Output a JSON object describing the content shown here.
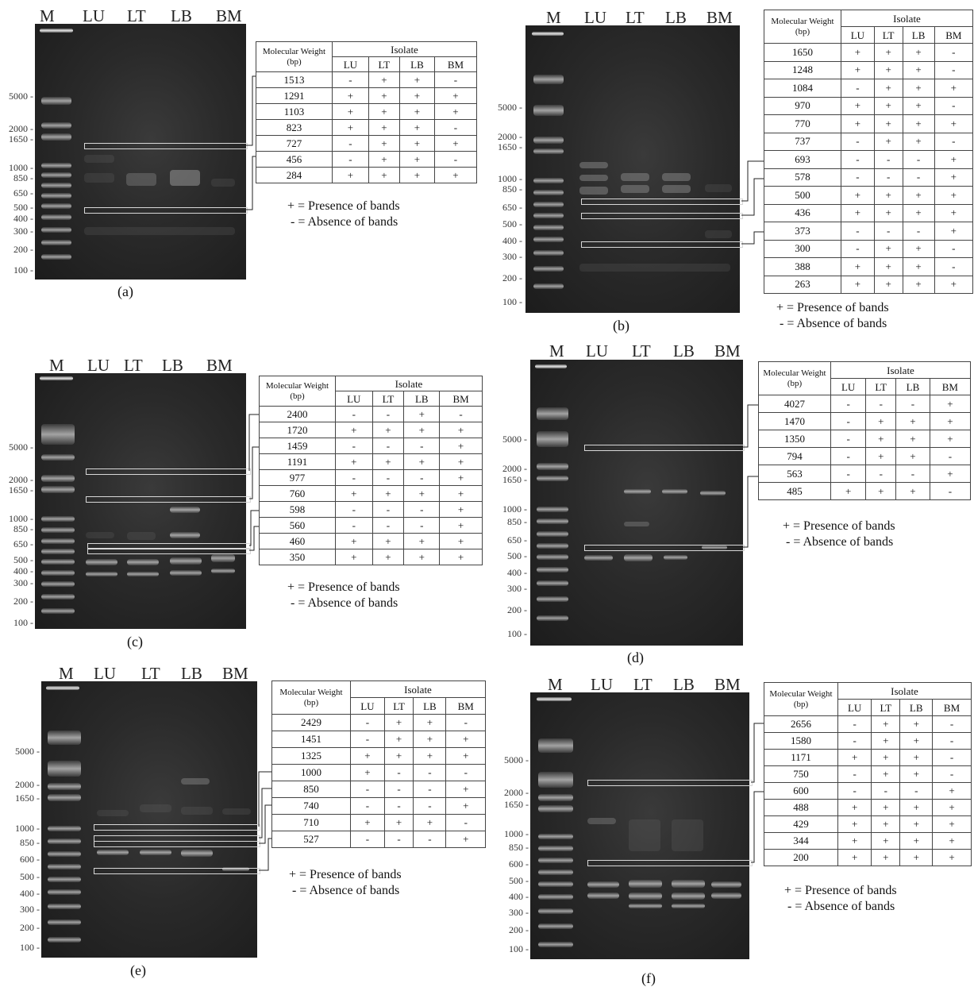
{
  "legend": {
    "presence": "+ = Presence of bands",
    "absence": "- = Absence of bands"
  },
  "ladder_labels": [
    "5000 -",
    "2000 -",
    "1650 -",
    "1000 -",
    "850 -",
    "650 -",
    "500 -",
    "400 -",
    "300 -",
    "200 -",
    "100 -"
  ],
  "ladder_labels_e": [
    "5000 -",
    "2000 -",
    "1650 -",
    "1000 -",
    "850 -",
    "600 -",
    "500 -",
    "400 -",
    "300 -",
    "200 -",
    "100 -"
  ],
  "ladder_labels_f": [
    "5000 -",
    "2000 -",
    "1650 -",
    "1000 -",
    "850 -",
    "600 -",
    "500 -",
    "400 -",
    "300 -",
    "200 -",
    "100 -"
  ],
  "table_header": {
    "mw": "Molecular Weight",
    "bp": "(bp)",
    "isolate": "Isolate",
    "cols": [
      "LU",
      "LT",
      "LB",
      "BM"
    ]
  },
  "panels": [
    {
      "caption": "(a)",
      "lanes": [
        "M",
        "LU",
        "LT",
        "LB",
        "BM"
      ],
      "rows": [
        [
          "1513",
          "-",
          "+",
          "+",
          "-"
        ],
        [
          "1291",
          "+",
          "+",
          "+",
          "+"
        ],
        [
          "1103",
          "+",
          "+",
          "+",
          "+"
        ],
        [
          "823",
          "+",
          "+",
          "+",
          "-"
        ],
        [
          "727",
          "-",
          "+",
          "+",
          "+"
        ],
        [
          "456",
          "-",
          "+",
          "+",
          "-"
        ],
        [
          "284",
          "+",
          "+",
          "+",
          "+"
        ]
      ]
    },
    {
      "caption": "(b)",
      "lanes": [
        "M",
        "LU",
        "LT",
        "LB",
        "BM"
      ],
      "rows": [
        [
          "1650",
          "+",
          "+",
          "+",
          "-"
        ],
        [
          "1248",
          "+",
          "+",
          "+",
          "-"
        ],
        [
          "1084",
          "-",
          "+",
          "+",
          "+"
        ],
        [
          "970",
          "+",
          "+",
          "+",
          "-"
        ],
        [
          "770",
          "+",
          "+",
          "+",
          "+"
        ],
        [
          "737",
          "-",
          "+",
          "+",
          "-"
        ],
        [
          "693",
          "-",
          "-",
          "-",
          "+"
        ],
        [
          "578",
          "-",
          "-",
          "-",
          "+"
        ],
        [
          "500",
          "+",
          "+",
          "+",
          "+"
        ],
        [
          "436",
          "+",
          "+",
          "+",
          "+"
        ],
        [
          "373",
          "-",
          "-",
          "-",
          "+"
        ],
        [
          "300",
          "-",
          "+",
          "+",
          "-"
        ],
        [
          "388",
          "+",
          "+",
          "+",
          "-"
        ],
        [
          "263",
          "+",
          "+",
          "+",
          "+"
        ]
      ]
    },
    {
      "caption": "(c)",
      "lanes": [
        "M",
        "LU",
        "LT",
        "LB",
        "BM"
      ],
      "rows": [
        [
          "2400",
          "-",
          "-",
          "+",
          "-"
        ],
        [
          "1720",
          "+",
          "+",
          "+",
          "+"
        ],
        [
          "1459",
          "-",
          "-",
          "-",
          "+"
        ],
        [
          "1191",
          "+",
          "+",
          "+",
          "+"
        ],
        [
          "977",
          "-",
          "-",
          "-",
          "+"
        ],
        [
          "760",
          "+",
          "+",
          "+",
          "+"
        ],
        [
          "598",
          "-",
          "-",
          "-",
          "+"
        ],
        [
          "560",
          "-",
          "-",
          "-",
          "+"
        ],
        [
          "460",
          "+",
          "+",
          "+",
          "+"
        ],
        [
          "350",
          "+",
          "+",
          "+",
          "+"
        ]
      ]
    },
    {
      "caption": "(d)",
      "lanes": [
        "M",
        "LU",
        "LT",
        "LB",
        "BM"
      ],
      "rows": [
        [
          "4027",
          "-",
          "-",
          "-",
          "+"
        ],
        [
          "1470",
          "-",
          "+",
          "+",
          "+"
        ],
        [
          "1350",
          "-",
          "+",
          "+",
          "+"
        ],
        [
          "794",
          "-",
          "+",
          "+",
          "-"
        ],
        [
          "563",
          "-",
          "-",
          "-",
          "+"
        ],
        [
          "485",
          "+",
          "+",
          "+",
          "-"
        ]
      ]
    },
    {
      "caption": "(e)",
      "lanes": [
        "M",
        "LU",
        "LT",
        "LB",
        "BM"
      ],
      "rows": [
        [
          "2429",
          "-",
          "+",
          "+",
          "-"
        ],
        [
          "1451",
          "-",
          "+",
          "+",
          "+"
        ],
        [
          "1325",
          "+",
          "+",
          "+",
          "+"
        ],
        [
          "1000",
          "+",
          "-",
          "-",
          "-"
        ],
        [
          "850",
          "-",
          "-",
          "-",
          "+"
        ],
        [
          "740",
          "-",
          "-",
          "-",
          "+"
        ],
        [
          "710",
          "+",
          "+",
          "+",
          "-"
        ],
        [
          "527",
          "-",
          "-",
          "-",
          "+"
        ]
      ]
    },
    {
      "caption": "(f)",
      "lanes": [
        "M",
        "LU",
        "LT",
        "LB",
        "BM"
      ],
      "rows": [
        [
          "2656",
          "-",
          "+",
          "+",
          "-"
        ],
        [
          "1580",
          "-",
          "+",
          "+",
          "-"
        ],
        [
          "1171",
          "+",
          "+",
          "+",
          "-"
        ],
        [
          "750",
          "-",
          "+",
          "+",
          "-"
        ],
        [
          "600",
          "-",
          "-",
          "-",
          "+"
        ],
        [
          "488",
          "+",
          "+",
          "+",
          "+"
        ],
        [
          "429",
          "+",
          "+",
          "+",
          "+"
        ],
        [
          "344",
          "+",
          "+",
          "+",
          "+"
        ],
        [
          "200",
          "+",
          "+",
          "+",
          "+"
        ]
      ]
    }
  ]
}
